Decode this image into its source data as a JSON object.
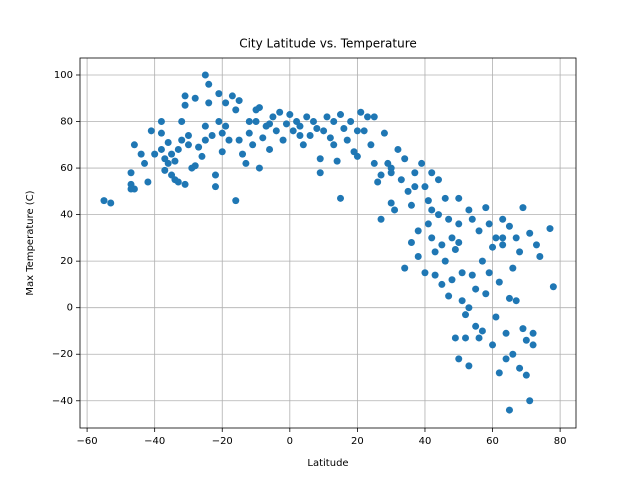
{
  "chart_data": {
    "type": "scatter",
    "title": "City Latitude vs. Temperature",
    "x_label": "Latitude",
    "y_label": "Max Temperature (C)",
    "color": "#1f77b4",
    "grid": true,
    "xlim": [
      -62.1,
      84.7
    ],
    "ylim": [
      -51.7,
      107.3
    ],
    "xticks": [
      {
        "value": -60,
        "label": "−60"
      },
      {
        "value": -40,
        "label": "−40"
      },
      {
        "value": -20,
        "label": "−20"
      },
      0,
      20,
      40,
      60,
      80
    ],
    "yticks": [
      {
        "value": -40,
        "label": "−40"
      },
      {
        "value": -20,
        "label": "−20"
      },
      0,
      20,
      40,
      60,
      80,
      100
    ],
    "x": [
      -55,
      -53,
      -47,
      -47,
      -46,
      -47,
      -46,
      -44,
      -43,
      -42,
      -41,
      -40,
      -38,
      -38,
      -38,
      -37,
      -37,
      -36,
      -36,
      -35,
      -35,
      -34,
      -34,
      -33,
      -33,
      -32,
      -31,
      -31,
      -31,
      -30,
      -29,
      -28,
      -28,
      -27,
      -26,
      -25,
      -25,
      -24,
      -24,
      -23,
      -22,
      -22,
      -21,
      -21,
      -20,
      -20,
      -19,
      -18,
      -17,
      -16,
      -16,
      -15,
      -15,
      -14,
      -13,
      -12,
      -11,
      -10,
      -10,
      -9,
      -9,
      -8,
      -7,
      -6,
      -5,
      -4,
      -3,
      -2,
      -1,
      0,
      1,
      2,
      3,
      4,
      5,
      6,
      7,
      8,
      9,
      9,
      10,
      11,
      12,
      13,
      14,
      15,
      15,
      16,
      17,
      18,
      19,
      20,
      21,
      22,
      23,
      24,
      25,
      25,
      26,
      27,
      27,
      28,
      29,
      30,
      30,
      31,
      32,
      33,
      34,
      34,
      35,
      36,
      36,
      37,
      38,
      38,
      39,
      40,
      40,
      41,
      41,
      42,
      42,
      43,
      43,
      44,
      44,
      45,
      45,
      46,
      46,
      47,
      47,
      48,
      48,
      49,
      49,
      50,
      50,
      50,
      51,
      51,
      52,
      52,
      53,
      53,
      53,
      54,
      54,
      55,
      55,
      56,
      56,
      57,
      57,
      58,
      58,
      59,
      59,
      60,
      60,
      61,
      61,
      62,
      62,
      63,
      63,
      64,
      64,
      65,
      65,
      65,
      66,
      66,
      67,
      67,
      68,
      68,
      69,
      69,
      70,
      70,
      71,
      71,
      72,
      72,
      73,
      74,
      77,
      78,
      -30,
      -32,
      -25,
      -19,
      -12,
      -6,
      3,
      13,
      20,
      30,
      37,
      42,
      50,
      63
    ],
    "values": [
      46,
      45,
      58,
      53,
      51,
      51,
      70,
      66,
      62,
      54,
      76,
      66,
      80,
      75,
      68,
      64,
      59,
      62,
      71,
      66,
      57,
      63,
      55,
      68,
      54,
      80,
      91,
      87,
      53,
      74,
      60,
      90,
      61,
      69,
      65,
      100,
      78,
      96,
      88,
      74,
      52,
      57,
      92,
      80,
      75,
      67,
      88,
      72,
      91,
      85,
      46,
      89,
      72,
      66,
      62,
      75,
      70,
      85,
      80,
      86,
      60,
      73,
      78,
      68,
      82,
      76,
      84,
      72,
      79,
      83,
      76,
      80,
      78,
      70,
      82,
      74,
      80,
      77,
      64,
      58,
      76,
      82,
      73,
      70,
      63,
      83,
      47,
      77,
      72,
      80,
      67,
      65,
      84,
      76,
      82,
      70,
      62,
      82,
      54,
      38,
      57,
      75,
      62,
      45,
      60,
      42,
      68,
      55,
      64,
      17,
      50,
      44,
      28,
      58,
      22,
      33,
      62,
      52,
      15,
      46,
      36,
      58,
      30,
      24,
      14,
      55,
      40,
      27,
      10,
      47,
      20,
      5,
      38,
      30,
      12,
      25,
      -13,
      47,
      36,
      -22,
      15,
      3,
      -3,
      -13,
      42,
      0,
      -25,
      38,
      14,
      8,
      -8,
      -13,
      33,
      20,
      -10,
      43,
      6,
      36,
      15,
      26,
      -16,
      30,
      -4,
      11,
      -28,
      38,
      27,
      -11,
      -22,
      -44,
      35,
      4,
      17,
      -20,
      30,
      3,
      -26,
      24,
      -9,
      43,
      -29,
      -14,
      -40,
      32,
      -11,
      -16,
      27,
      22,
      34,
      9,
      70,
      72,
      72,
      78,
      80,
      79,
      74,
      80,
      76,
      58,
      52,
      42,
      28,
      30
    ]
  }
}
